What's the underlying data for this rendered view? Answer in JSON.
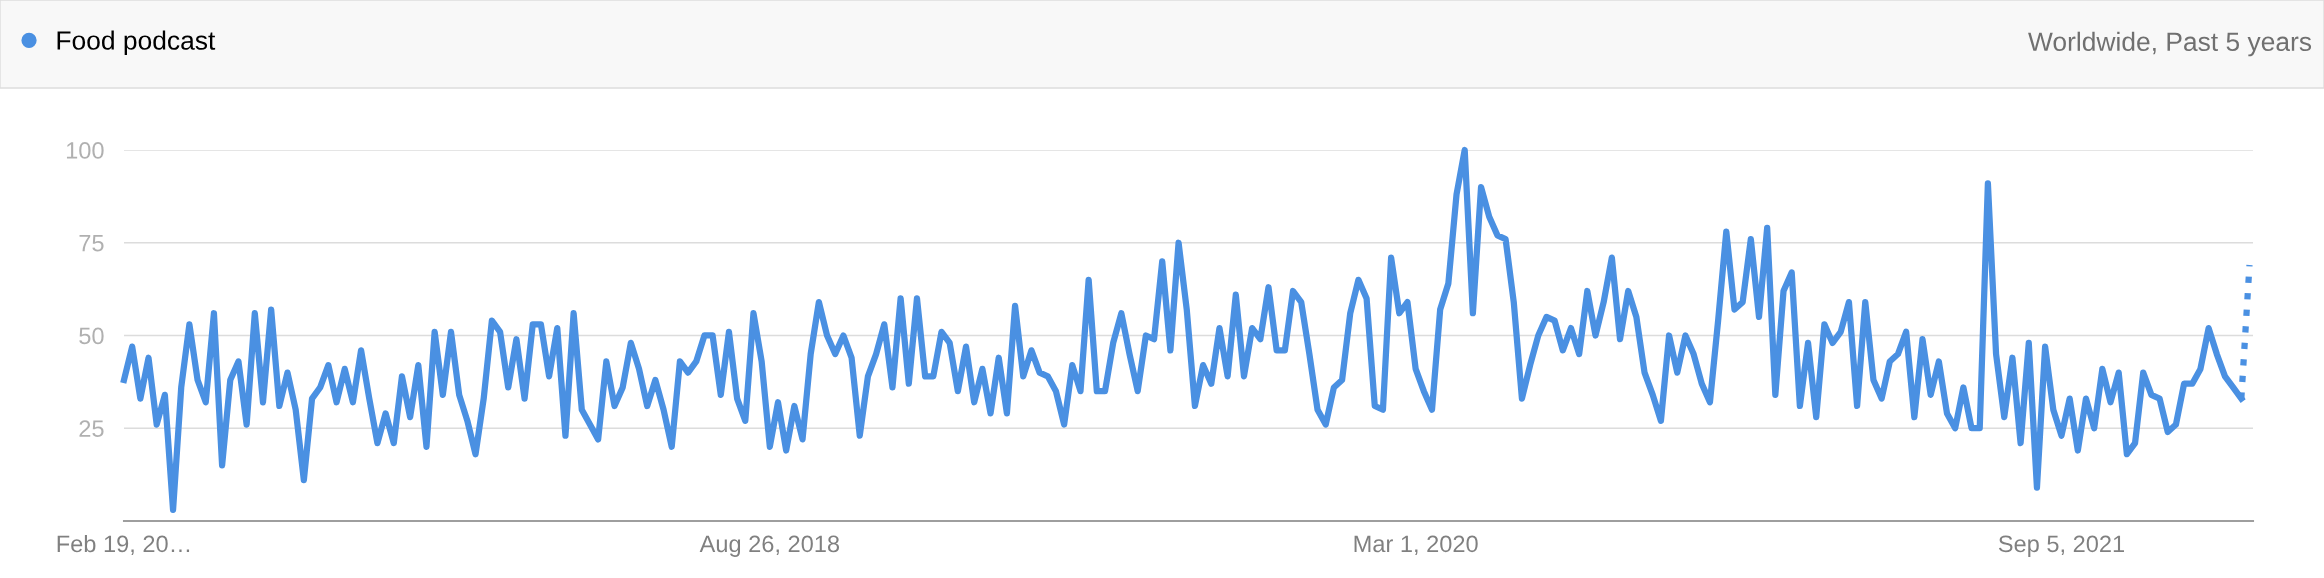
{
  "chart_data": {
    "type": "line",
    "subtitle": "Worldwide, Past 5 years",
    "legend": "top left",
    "grid": "y",
    "marker": "none",
    "ylim": [
      0,
      100
    ],
    "yticks": [
      {
        "value": 0,
        "label": null
      },
      25,
      50,
      75,
      100
    ],
    "xlim": [
      "2017-02-19",
      "2022-02-16"
    ],
    "xticks": [
      {
        "value": "2017-02-19",
        "label": "Feb 19, 20…"
      },
      {
        "value": "2018-08-26",
        "label": "Aug 26, 2018"
      },
      {
        "value": "2020-03-01",
        "label": "Mar 1, 2020"
      },
      {
        "value": "2021-09-05",
        "label": "Sep 5, 2021"
      }
    ],
    "series": [
      {
        "name": "Food podcast",
        "color": "#4a90e2",
        "line_style": "solid",
        "x": [
          "2017-02-19",
          "2017-02-26",
          "2017-03-05",
          "2017-03-12",
          "2017-03-19",
          "2017-03-26",
          "2017-04-02",
          "2017-04-09",
          "2017-04-16",
          "2017-04-23",
          "2017-04-30",
          "2017-05-07",
          "2017-05-14",
          "2017-05-21",
          "2017-05-28",
          "2017-06-04",
          "2017-06-11",
          "2017-06-18",
          "2017-06-25",
          "2017-07-02",
          "2017-07-09",
          "2017-07-16",
          "2017-07-23",
          "2017-07-30",
          "2017-08-06",
          "2017-08-13",
          "2017-08-20",
          "2017-08-27",
          "2017-09-03",
          "2017-09-10",
          "2017-09-17",
          "2017-09-24",
          "2017-10-01",
          "2017-10-08",
          "2017-10-15",
          "2017-10-22",
          "2017-10-29",
          "2017-11-05",
          "2017-11-12",
          "2017-11-19",
          "2017-11-26",
          "2017-12-03",
          "2017-12-10",
          "2017-12-17",
          "2017-12-24",
          "2017-12-31",
          "2018-01-07",
          "2018-01-14",
          "2018-01-21",
          "2018-01-28",
          "2018-02-04",
          "2018-02-11",
          "2018-02-18",
          "2018-02-25",
          "2018-03-04",
          "2018-03-11",
          "2018-03-18",
          "2018-03-25",
          "2018-04-01",
          "2018-04-08",
          "2018-04-15",
          "2018-04-22",
          "2018-04-29",
          "2018-05-06",
          "2018-05-13",
          "2018-05-20",
          "2018-05-27",
          "2018-06-03",
          "2018-06-10",
          "2018-06-17",
          "2018-06-24",
          "2018-07-01",
          "2018-07-08",
          "2018-07-15",
          "2018-07-22",
          "2018-07-29",
          "2018-08-05",
          "2018-08-12",
          "2018-08-19",
          "2018-08-26",
          "2018-09-02",
          "2018-09-09",
          "2018-09-16",
          "2018-09-23",
          "2018-09-30",
          "2018-10-07",
          "2018-10-14",
          "2018-10-21",
          "2018-10-28",
          "2018-11-04",
          "2018-11-11",
          "2018-11-18",
          "2018-11-25",
          "2018-12-02",
          "2018-12-09",
          "2018-12-16",
          "2018-12-23",
          "2018-12-30",
          "2019-01-06",
          "2019-01-13",
          "2019-01-20",
          "2019-01-27",
          "2019-02-03",
          "2019-02-10",
          "2019-02-17",
          "2019-02-24",
          "2019-03-03",
          "2019-03-10",
          "2019-03-17",
          "2019-03-24",
          "2019-03-31",
          "2019-04-07",
          "2019-04-14",
          "2019-04-21",
          "2019-04-28",
          "2019-05-05",
          "2019-05-12",
          "2019-05-19",
          "2019-05-26",
          "2019-06-02",
          "2019-06-09",
          "2019-06-16",
          "2019-06-23",
          "2019-06-30",
          "2019-07-07",
          "2019-07-14",
          "2019-07-21",
          "2019-07-28",
          "2019-08-04",
          "2019-08-11",
          "2019-08-18",
          "2019-08-25",
          "2019-09-01",
          "2019-09-08",
          "2019-09-15",
          "2019-09-22",
          "2019-09-29",
          "2019-10-06",
          "2019-10-13",
          "2019-10-20",
          "2019-10-27",
          "2019-11-03",
          "2019-11-10",
          "2019-11-17",
          "2019-11-24",
          "2019-12-01",
          "2019-12-08",
          "2019-12-15",
          "2019-12-22",
          "2019-12-29",
          "2020-01-05",
          "2020-01-12",
          "2020-01-19",
          "2020-01-26",
          "2020-02-02",
          "2020-02-09",
          "2020-02-16",
          "2020-02-23",
          "2020-03-01",
          "2020-03-08",
          "2020-03-15",
          "2020-03-22",
          "2020-03-29",
          "2020-04-05",
          "2020-04-12",
          "2020-04-19",
          "2020-04-26",
          "2020-05-03",
          "2020-05-10",
          "2020-05-17",
          "2020-05-24",
          "2020-05-31",
          "2020-06-07",
          "2020-06-14",
          "2020-06-21",
          "2020-06-28",
          "2020-07-05",
          "2020-07-12",
          "2020-07-19",
          "2020-07-26",
          "2020-08-02",
          "2020-08-09",
          "2020-08-16",
          "2020-08-23",
          "2020-08-30",
          "2020-09-06",
          "2020-09-13",
          "2020-09-20",
          "2020-09-27",
          "2020-10-04",
          "2020-10-11",
          "2020-10-18",
          "2020-10-25",
          "2020-11-01",
          "2020-11-08",
          "2020-11-15",
          "2020-11-22",
          "2020-11-29",
          "2020-12-06",
          "2020-12-13",
          "2020-12-20",
          "2020-12-27",
          "2021-01-03",
          "2021-01-10",
          "2021-01-17",
          "2021-01-24",
          "2021-01-31",
          "2021-02-07",
          "2021-02-14",
          "2021-02-21",
          "2021-02-28",
          "2021-03-07",
          "2021-03-14",
          "2021-03-21",
          "2021-03-28",
          "2021-04-04",
          "2021-04-11",
          "2021-04-18",
          "2021-04-25",
          "2021-05-02",
          "2021-05-09",
          "2021-05-16",
          "2021-05-23",
          "2021-05-30",
          "2021-06-06",
          "2021-06-13",
          "2021-06-20",
          "2021-06-27",
          "2021-07-04",
          "2021-07-11",
          "2021-07-18",
          "2021-07-25",
          "2021-08-01",
          "2021-08-08",
          "2021-08-15",
          "2021-08-22",
          "2021-08-29",
          "2021-09-05",
          "2021-09-12",
          "2021-09-19",
          "2021-09-26",
          "2021-10-03",
          "2021-10-10",
          "2021-10-17",
          "2021-10-24",
          "2021-10-31",
          "2021-11-07",
          "2021-11-14",
          "2021-11-21",
          "2021-11-28",
          "2021-12-05",
          "2021-12-12",
          "2021-12-19",
          "2021-12-26",
          "2022-01-02",
          "2022-01-09",
          "2022-01-16",
          "2022-01-23",
          "2022-01-30",
          "2022-02-06"
        ],
        "values": [
          38,
          47,
          33,
          44,
          26,
          34,
          3,
          36,
          53,
          38,
          32,
          56,
          15,
          38,
          43,
          26,
          56,
          32,
          57,
          31,
          40,
          30,
          11,
          33,
          36,
          42,
          32,
          41,
          32,
          46,
          33,
          21,
          29,
          21,
          39,
          28,
          42,
          20,
          51,
          34,
          51,
          34,
          27,
          18,
          33,
          54,
          51,
          36,
          49,
          33,
          53,
          53,
          39,
          52,
          23,
          56,
          30,
          26,
          22,
          43,
          31,
          36,
          48,
          41,
          31,
          38,
          30,
          20,
          43,
          40,
          43,
          50,
          50,
          34,
          51,
          33,
          27,
          56,
          43,
          20,
          32,
          19,
          31,
          22,
          45,
          59,
          50,
          45,
          50,
          44,
          23,
          39,
          45,
          53,
          36,
          60,
          37,
          60,
          39,
          39,
          51,
          48,
          35,
          47,
          32,
          41,
          29,
          44,
          29,
          58,
          39,
          46,
          40,
          39,
          35,
          26,
          42,
          35,
          65,
          35,
          35,
          48,
          56,
          45,
          35,
          50,
          49,
          70,
          46,
          75,
          57,
          31,
          42,
          37,
          52,
          39,
          61,
          39,
          52,
          49,
          63,
          46,
          46,
          62,
          59,
          45,
          30,
          26,
          36,
          38,
          56,
          65,
          60,
          31,
          30,
          71,
          56,
          59,
          41,
          35,
          30,
          57,
          64,
          88,
          100,
          56,
          90,
          82,
          77,
          76,
          59,
          33,
          42,
          50,
          55,
          54,
          46,
          52,
          45,
          62,
          50,
          59,
          71,
          49,
          62,
          55,
          40,
          34,
          27,
          50,
          40,
          50,
          45,
          37,
          32,
          54,
          78,
          57,
          59,
          76,
          55,
          79,
          34,
          62,
          67,
          31,
          48,
          28,
          53,
          48,
          51,
          59,
          31,
          59,
          38,
          33,
          43,
          45,
          51,
          28,
          49,
          34,
          43,
          29,
          25,
          36,
          25,
          25,
          91,
          45,
          28,
          44,
          21,
          48,
          9,
          47,
          30,
          23,
          33,
          19,
          33,
          25,
          41,
          32,
          40,
          18,
          21,
          40,
          34,
          33,
          24,
          26,
          37,
          37,
          41,
          52,
          45,
          39,
          36,
          33
        ]
      },
      {
        "color": "#4a90e2",
        "line_style": "dotted",
        "x": [
          "2022-02-06",
          "2022-02-13"
        ],
        "values": [
          33,
          69
        ]
      }
    ]
  }
}
